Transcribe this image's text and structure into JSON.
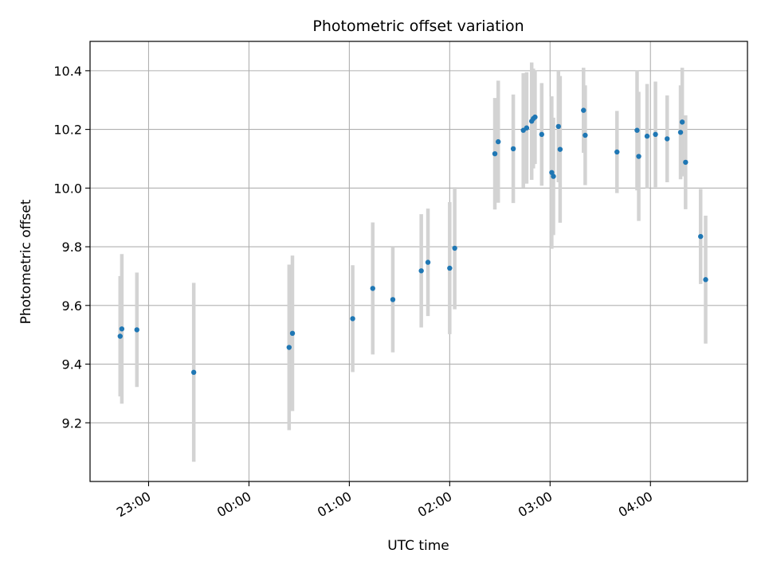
{
  "chart_data": {
    "type": "scatter",
    "title": "Photometric offset variation",
    "xlabel": "UTC time",
    "ylabel": "Photometric offset",
    "x_unit": "UTC",
    "xlim": [
      "22:25",
      "04:58"
    ],
    "ylim": [
      9.0,
      10.5
    ],
    "grid": true,
    "legend": "none",
    "x_ticks": [
      "23:00",
      "00:00",
      "01:00",
      "02:00",
      "03:00",
      "04:00"
    ],
    "y_ticks": [
      "9.2",
      "9.4",
      "9.6",
      "9.8",
      "10.0",
      "10.2",
      "10.4"
    ],
    "colors": {
      "marker": "#1f77b4",
      "errorbar": "#d3d3d3",
      "grid": "#b0b0b0",
      "axes": "#000000"
    },
    "series": [
      {
        "points": [
          {
            "x": "22:43",
            "y": 9.495,
            "err": 0.205
          },
          {
            "x": "22:44",
            "y": 9.52,
            "err": 0.255
          },
          {
            "x": "22:53",
            "y": 9.517,
            "err": 0.195
          },
          {
            "x": "23:27",
            "y": 9.372,
            "err": 0.305
          },
          {
            "x": "00:24",
            "y": 9.457,
            "err": 0.282
          },
          {
            "x": "00:26",
            "y": 9.505,
            "err": 0.265
          },
          {
            "x": "01:02",
            "y": 9.555,
            "err": 0.182
          },
          {
            "x": "01:14",
            "y": 9.658,
            "err": 0.225
          },
          {
            "x": "01:26",
            "y": 9.62,
            "err": 0.18
          },
          {
            "x": "01:43",
            "y": 9.718,
            "err": 0.193
          },
          {
            "x": "01:47",
            "y": 9.747,
            "err": 0.183
          },
          {
            "x": "02:00",
            "y": 9.727,
            "err": 0.225
          },
          {
            "x": "02:03",
            "y": 9.795,
            "err": 0.208
          },
          {
            "x": "02:27",
            "y": 10.117,
            "err": 0.19
          },
          {
            "x": "02:29",
            "y": 10.158,
            "err": 0.208
          },
          {
            "x": "02:38",
            "y": 10.134,
            "err": 0.185
          },
          {
            "x": "02:44",
            "y": 10.197,
            "err": 0.195
          },
          {
            "x": "02:46",
            "y": 10.205,
            "err": 0.19
          },
          {
            "x": "02:49",
            "y": 10.228,
            "err": 0.2
          },
          {
            "x": "02:50",
            "y": 10.237,
            "err": 0.17
          },
          {
            "x": "02:51",
            "y": 10.242,
            "err": 0.16
          },
          {
            "x": "02:55",
            "y": 10.183,
            "err": 0.175
          },
          {
            "x": "03:01",
            "y": 10.053,
            "err": 0.26
          },
          {
            "x": "03:02",
            "y": 10.04,
            "err": 0.2
          },
          {
            "x": "03:05",
            "y": 10.21,
            "err": 0.19
          },
          {
            "x": "03:06",
            "y": 10.132,
            "err": 0.25
          },
          {
            "x": "03:20",
            "y": 10.265,
            "err": 0.145
          },
          {
            "x": "03:21",
            "y": 10.18,
            "err": 0.17
          },
          {
            "x": "03:40",
            "y": 10.123,
            "err": 0.14
          },
          {
            "x": "03:52",
            "y": 10.197,
            "err": 0.205
          },
          {
            "x": "03:53",
            "y": 10.108,
            "err": 0.22
          },
          {
            "x": "03:58",
            "y": 10.177,
            "err": 0.178
          },
          {
            "x": "04:03",
            "y": 10.183,
            "err": 0.18
          },
          {
            "x": "04:10",
            "y": 10.168,
            "err": 0.148
          },
          {
            "x": "04:18",
            "y": 10.19,
            "err": 0.16
          },
          {
            "x": "04:19",
            "y": 10.225,
            "err": 0.185
          },
          {
            "x": "04:21",
            "y": 10.088,
            "err": 0.16
          },
          {
            "x": "04:30",
            "y": 9.835,
            "err": 0.162
          },
          {
            "x": "04:33",
            "y": 9.688,
            "err": 0.218
          }
        ]
      }
    ]
  }
}
